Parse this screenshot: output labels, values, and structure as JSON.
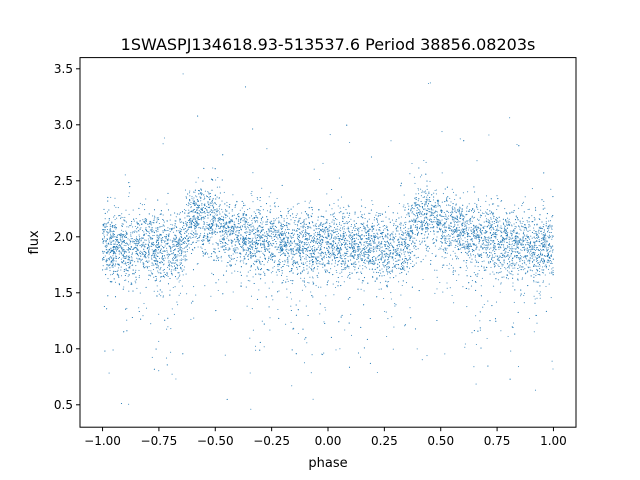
{
  "chart_data": {
    "type": "scatter",
    "title": "1SWASPJ134618.93-513537.6 Period 38856.08203s",
    "xlabel": "phase",
    "ylabel": "flux",
    "xlim": [
      -1.1,
      1.1
    ],
    "ylim": [
      0.3,
      3.6
    ],
    "xticks": [
      -1.0,
      -0.75,
      -0.5,
      -0.25,
      0.0,
      0.25,
      0.5,
      0.75,
      1.0
    ],
    "xtick_labels": [
      "−1.00",
      "−0.75",
      "−0.50",
      "−0.25",
      "0.00",
      "0.25",
      "0.50",
      "0.75",
      "1.00"
    ],
    "yticks": [
      0.5,
      1.0,
      1.5,
      2.0,
      2.5,
      3.0,
      3.5
    ],
    "ytick_labels": [
      "0.5",
      "1.0",
      "1.5",
      "2.0",
      "2.5",
      "3.0",
      "3.5"
    ],
    "grid": false,
    "legend": "none",
    "marker_color": "#1f77b4",
    "series": [
      {
        "x": [
          -1.0,
          -0.95,
          -0.9,
          -0.85,
          -0.8,
          -0.75,
          -0.7,
          -0.65,
          -0.6,
          -0.55,
          -0.5,
          -0.45,
          -0.4,
          -0.35,
          -0.3,
          -0.25,
          -0.2,
          -0.15,
          -0.1,
          -0.05,
          0.0,
          0.05,
          0.1,
          0.15,
          0.2,
          0.25,
          0.3,
          0.35,
          0.4,
          0.45,
          0.5,
          0.55,
          0.6,
          0.65,
          0.7,
          0.75,
          0.8,
          0.85,
          0.9,
          0.95,
          1.0
        ],
        "y": [
          1.93,
          1.92,
          1.91,
          1.92,
          1.93,
          1.92,
          1.9,
          1.94,
          2.2,
          2.18,
          2.1,
          2.05,
          2.02,
          2.0,
          1.98,
          1.96,
          1.95,
          1.94,
          1.93,
          1.92,
          1.93,
          1.92,
          1.91,
          1.92,
          1.93,
          1.92,
          1.9,
          1.94,
          2.2,
          2.18,
          2.1,
          2.05,
          2.02,
          2.0,
          1.98,
          1.96,
          1.95,
          1.94,
          1.93,
          1.92,
          1.93
        ]
      }
    ]
  }
}
